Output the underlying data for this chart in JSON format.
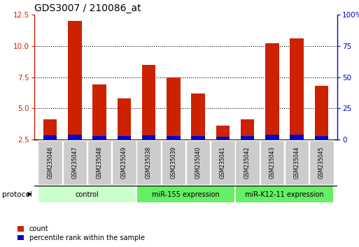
{
  "title": "GDS3007 / 210086_at",
  "samples": [
    "GSM235046",
    "GSM235047",
    "GSM235048",
    "GSM235049",
    "GSM235038",
    "GSM235039",
    "GSM235040",
    "GSM235041",
    "GSM235042",
    "GSM235043",
    "GSM235044",
    "GSM235045"
  ],
  "count_values": [
    4.1,
    12.0,
    6.9,
    5.8,
    8.5,
    7.5,
    6.2,
    3.6,
    4.1,
    10.2,
    10.6,
    6.8
  ],
  "percentile_values": [
    0.35,
    0.4,
    0.3,
    0.3,
    0.32,
    0.28,
    0.3,
    0.22,
    0.28,
    0.42,
    0.42,
    0.28
  ],
  "groups": [
    {
      "label": "control",
      "start": 0,
      "end": 3,
      "color": "#ccffcc"
    },
    {
      "label": "miR-155 expression",
      "start": 4,
      "end": 7,
      "color": "#66ee66"
    },
    {
      "label": "miR-K12-11 expression",
      "start": 8,
      "end": 11,
      "color": "#66ee66"
    }
  ],
  "ylim_left": [
    2.5,
    12.5
  ],
  "ylim_right": [
    0,
    100
  ],
  "yticks_left": [
    2.5,
    5.0,
    7.5,
    10.0,
    12.5
  ],
  "yticks_right": [
    0,
    25,
    50,
    75,
    100
  ],
  "ytick_labels_right": [
    "0",
    "25",
    "50",
    "75",
    "100%"
  ],
  "bar_color_red": "#cc2200",
  "bar_color_blue": "#0000cc",
  "bar_width": 0.55,
  "grid_color": "black",
  "left_tick_color": "#cc2200",
  "right_tick_color": "#0000cc",
  "legend_count_label": "count",
  "legend_pct_label": "percentile rank within the sample",
  "protocol_label": "protocol",
  "label_bg_color": "#cccccc",
  "plot_border_color": "#000000"
}
